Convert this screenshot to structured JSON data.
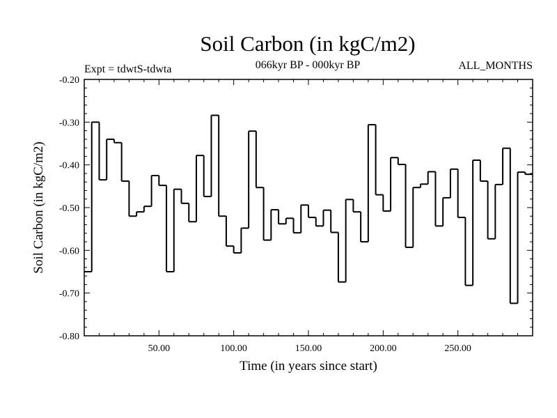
{
  "chart_data": {
    "type": "line",
    "style": "step",
    "title": "Soil Carbon (in kgC/m2)",
    "subtitle": "066kyr BP - 000kyr BP",
    "experiment_label": "Expt = tdwtS-tdwta",
    "months_label": "ALL_MONTHS",
    "xlabel": "Time (in years since start)",
    "ylabel": "Soil Carbon (in kgC/m2)",
    "xlim": [
      0,
      300
    ],
    "ylim": [
      -0.8,
      -0.2
    ],
    "x_ticks": [
      50,
      100,
      150,
      200,
      250
    ],
    "x_tick_labels": [
      "50.00",
      "100.00",
      "150.00",
      "200.00",
      "250.00"
    ],
    "y_ticks": [
      -0.8,
      -0.7,
      -0.6,
      -0.5,
      -0.4,
      -0.3,
      -0.2
    ],
    "y_tick_labels": [
      "-0.80",
      "-0.70",
      "-0.60",
      "-0.50",
      "-0.40",
      "-0.30",
      "-0.20"
    ],
    "bin_width": 5,
    "x": [
      0,
      5,
      10,
      15,
      20,
      25,
      30,
      35,
      40,
      45,
      50,
      55,
      60,
      65,
      70,
      75,
      80,
      85,
      90,
      95,
      100,
      105,
      110,
      115,
      120,
      125,
      130,
      135,
      140,
      145,
      150,
      155,
      160,
      165,
      170,
      175,
      180,
      185,
      190,
      195,
      200,
      205,
      210,
      215,
      220,
      225,
      230,
      235,
      240,
      245,
      250,
      255,
      260,
      265,
      270,
      275,
      280,
      285,
      290,
      295
    ],
    "values": [
      -0.65,
      -0.3,
      -0.435,
      -0.34,
      -0.348,
      -0.438,
      -0.52,
      -0.51,
      -0.497,
      -0.425,
      -0.448,
      -0.65,
      -0.457,
      -0.49,
      -0.533,
      -0.378,
      -0.474,
      -0.284,
      -0.52,
      -0.59,
      -0.606,
      -0.548,
      -0.321,
      -0.453,
      -0.576,
      -0.505,
      -0.538,
      -0.525,
      -0.559,
      -0.494,
      -0.523,
      -0.543,
      -0.506,
      -0.558,
      -0.674,
      -0.481,
      -0.51,
      -0.58,
      -0.306,
      -0.47,
      -0.508,
      -0.383,
      -0.399,
      -0.593,
      -0.453,
      -0.445,
      -0.416,
      -0.543,
      -0.477,
      -0.41,
      -0.523,
      -0.682,
      -0.389,
      -0.438,
      -0.573,
      -0.446,
      -0.361,
      -0.724,
      -0.417,
      -0.422
    ]
  }
}
